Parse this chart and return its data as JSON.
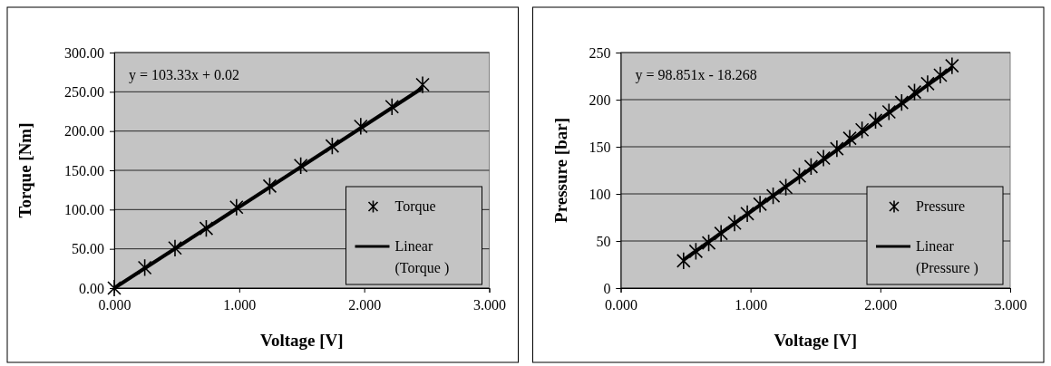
{
  "chart_data": [
    {
      "type": "scatter",
      "xlabel": "Voltage [V]",
      "ylabel": "Torque [Nm]",
      "annotations": [
        "y = 103.33x + 0.02"
      ],
      "xlim": [
        0,
        3
      ],
      "xticks": [
        {
          "value": 0,
          "label": "0.000"
        },
        {
          "value": 1,
          "label": "1.000"
        },
        {
          "value": 2,
          "label": "2.000"
        },
        {
          "value": 3,
          "label": "3.000"
        }
      ],
      "ylim": [
        0,
        300
      ],
      "yticks": [
        {
          "value": 0,
          "label": "0.00"
        },
        {
          "value": 50,
          "label": "50.00"
        },
        {
          "value": 100,
          "label": "100.00"
        },
        {
          "value": 150,
          "label": "150.00"
        },
        {
          "value": 200,
          "label": "200.00"
        },
        {
          "value": 250,
          "label": "250.00"
        },
        {
          "value": 300,
          "label": "300.00"
        }
      ],
      "grid": "y",
      "legend": "right",
      "series": [
        {
          "name": "Torque",
          "marker": "cross",
          "color": "#000000",
          "x": [
            0,
            0.244,
            0.486,
            0.736,
            0.978,
            1.244,
            1.492,
            1.744,
            1.972,
            2.222,
            2.467
          ],
          "values": [
            0,
            26,
            51,
            76,
            103,
            130,
            156,
            181,
            206,
            231,
            259
          ]
        },
        {
          "name": "Linear (Torque )",
          "type": "line",
          "marker": "none",
          "color": "#000000",
          "line_style": "solid",
          "x": [
            0,
            2.467
          ],
          "values": [
            0,
            255
          ]
        }
      ]
    },
    {
      "type": "scatter",
      "xlabel": "Voltage [V]",
      "ylabel": "Pressure [bar]",
      "annotations": [
        "y = 98.851x - 18.268"
      ],
      "xlim": [
        0,
        3
      ],
      "xticks": [
        {
          "value": 0,
          "label": "0.000"
        },
        {
          "value": 1,
          "label": "1.000"
        },
        {
          "value": 2,
          "label": "2.000"
        },
        {
          "value": 3,
          "label": "3.000"
        }
      ],
      "ylim": [
        0,
        250
      ],
      "yticks": [
        0,
        50,
        100,
        150,
        200,
        250
      ],
      "grid": "y",
      "legend": "right",
      "series": [
        {
          "name": "Pressure",
          "marker": "cross",
          "color": "#000000",
          "x": [
            0.484,
            0.579,
            0.678,
            0.773,
            0.877,
            0.975,
            1.073,
            1.174,
            1.272,
            1.376,
            1.466,
            1.562,
            1.665,
            1.764,
            1.859,
            1.963,
            2.066,
            2.164,
            2.263,
            2.364,
            2.462,
            2.552
          ],
          "values": [
            29,
            39,
            48,
            58,
            69,
            79,
            89,
            98,
            107,
            119,
            129,
            138,
            148,
            159,
            168,
            178,
            187,
            197,
            208,
            217,
            226,
            236
          ]
        },
        {
          "name": "Linear (Pressure )",
          "type": "line",
          "marker": "none",
          "color": "#000000",
          "line_style": "solid",
          "x": [
            0.484,
            2.552
          ],
          "values": [
            30,
            234
          ]
        }
      ]
    }
  ]
}
